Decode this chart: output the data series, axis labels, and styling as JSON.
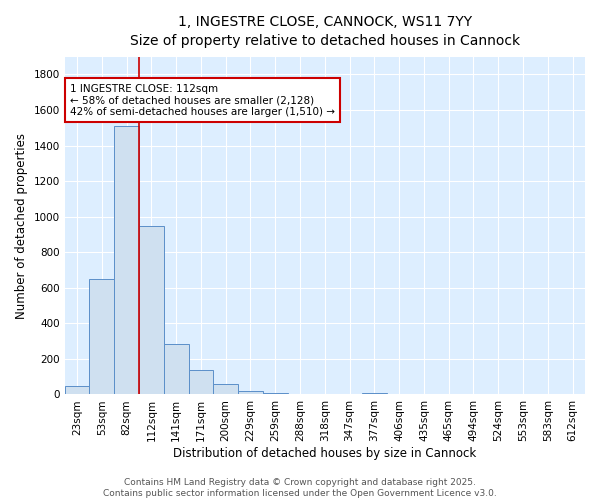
{
  "title_line1": "1, INGESTRE CLOSE, CANNOCK, WS11 7YY",
  "title_line2": "Size of property relative to detached houses in Cannock",
  "xlabel": "Distribution of detached houses by size in Cannock",
  "ylabel": "Number of detached properties",
  "bar_labels": [
    "23sqm",
    "53sqm",
    "82sqm",
    "112sqm",
    "141sqm",
    "171sqm",
    "200sqm",
    "229sqm",
    "259sqm",
    "288sqm",
    "318sqm",
    "347sqm",
    "377sqm",
    "406sqm",
    "435sqm",
    "465sqm",
    "494sqm",
    "524sqm",
    "553sqm",
    "583sqm",
    "612sqm"
  ],
  "bar_values": [
    45,
    650,
    1510,
    950,
    285,
    135,
    60,
    20,
    8,
    3,
    2,
    1,
    10,
    2,
    0,
    0,
    0,
    0,
    0,
    0,
    0
  ],
  "bar_color": "#cfe0f0",
  "bar_edge_color": "#5b8fc9",
  "red_line_color": "#cc0000",
  "annotation_text": "1 INGESTRE CLOSE: 112sqm\n← 58% of detached houses are smaller (2,128)\n42% of semi-detached houses are larger (1,510) →",
  "annotation_box_color": "#ffffff",
  "annotation_box_edge_color": "#cc0000",
  "ylim": [
    0,
    1900
  ],
  "yticks": [
    0,
    200,
    400,
    600,
    800,
    1000,
    1200,
    1400,
    1600,
    1800
  ],
  "background_color": "#ddeeff",
  "plot_bg_color": "#ddeeff",
  "fig_bg_color": "#ffffff",
  "grid_color": "#ffffff",
  "footer_line1": "Contains HM Land Registry data © Crown copyright and database right 2025.",
  "footer_line2": "Contains public sector information licensed under the Open Government Licence v3.0.",
  "title_fontsize": 10,
  "subtitle_fontsize": 9,
  "axis_label_fontsize": 8.5,
  "tick_fontsize": 7.5,
  "annotation_fontsize": 7.5,
  "footer_fontsize": 6.5
}
